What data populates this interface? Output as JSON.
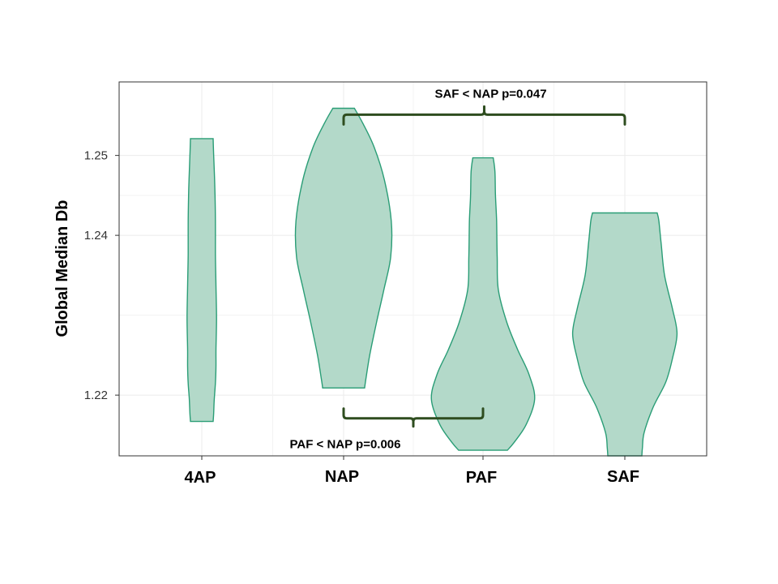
{
  "chart_data": {
    "type": "violin",
    "categories": [
      "4AP",
      "NAP",
      "PAF",
      "SAF"
    ],
    "ylabel": "Global Median Db",
    "y_ticks": [
      1.22,
      1.24,
      1.25
    ],
    "y_tick_labels": [
      "1.22",
      "1.24",
      "1.25"
    ],
    "ylim": [
      1.2124,
      1.2592
    ],
    "grid": true,
    "colors": {
      "fill": "#b3d9c9",
      "stroke": "#2a9d76",
      "bracket": "#2e4d1f"
    },
    "violins": [
      {
        "category": "4AP",
        "y_min": 1.2167,
        "y_max": 1.2521,
        "profile": [
          [
            1.2167,
            0.2
          ],
          [
            1.2178,
            0.21
          ],
          [
            1.2195,
            0.22
          ],
          [
            1.2215,
            0.24
          ],
          [
            1.2236,
            0.25
          ],
          [
            1.2257,
            0.25
          ],
          [
            1.2296,
            0.26
          ],
          [
            1.2337,
            0.25
          ],
          [
            1.2377,
            0.24
          ],
          [
            1.2418,
            0.24
          ],
          [
            1.2459,
            0.23
          ],
          [
            1.2499,
            0.21
          ],
          [
            1.2521,
            0.2
          ]
        ]
      },
      {
        "category": "NAP",
        "y_min": 1.2209,
        "y_max": 1.2559,
        "profile": [
          [
            1.2209,
            0.37
          ],
          [
            1.2219,
            0.39
          ],
          [
            1.225,
            0.46
          ],
          [
            1.2291,
            0.58
          ],
          [
            1.2332,
            0.71
          ],
          [
            1.2373,
            0.83
          ],
          [
            1.2418,
            0.84
          ],
          [
            1.2469,
            0.72
          ],
          [
            1.251,
            0.54
          ],
          [
            1.254,
            0.34
          ],
          [
            1.2559,
            0.19
          ]
        ]
      },
      {
        "category": "PAF",
        "y_min": 1.2131,
        "y_max": 1.2497,
        "profile": [
          [
            1.2131,
            0.43
          ],
          [
            1.2141,
            0.55
          ],
          [
            1.2163,
            0.76
          ],
          [
            1.2195,
            0.91
          ],
          [
            1.2226,
            0.81
          ],
          [
            1.2257,
            0.61
          ],
          [
            1.2291,
            0.42
          ],
          [
            1.2332,
            0.27
          ],
          [
            1.2373,
            0.25
          ],
          [
            1.2418,
            0.24
          ],
          [
            1.2449,
            0.22
          ],
          [
            1.248,
            0.21
          ],
          [
            1.2497,
            0.18
          ]
        ]
      },
      {
        "category": "SAF",
        "y_min": 1.2124,
        "y_max": 1.2428,
        "profile": [
          [
            1.2124,
            0.3
          ],
          [
            1.2134,
            0.31
          ],
          [
            1.2153,
            0.34
          ],
          [
            1.2185,
            0.5
          ],
          [
            1.2216,
            0.72
          ],
          [
            1.2246,
            0.84
          ],
          [
            1.2277,
            0.92
          ],
          [
            1.2308,
            0.84
          ],
          [
            1.235,
            0.7
          ],
          [
            1.239,
            0.64
          ],
          [
            1.2418,
            0.6
          ],
          [
            1.2428,
            0.57
          ]
        ]
      }
    ],
    "annotations": [
      {
        "text": "SAF < NAP p=0.047",
        "from": "NAP",
        "to": "SAF",
        "y": 1.2551,
        "side": "top"
      },
      {
        "text": "PAF < NAP p=0.006",
        "from": "NAP",
        "to": "PAF",
        "y": 1.2171,
        "side": "bottom"
      }
    ]
  }
}
